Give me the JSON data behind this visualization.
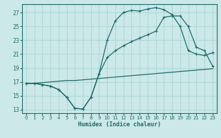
{
  "xlabel": "Humidex (Indice chaleur)",
  "bg_color": "#cce8e8",
  "grid_color": "#b0d8d8",
  "line_color": "#1a6b6b",
  "xlim": [
    -0.5,
    23.5
  ],
  "ylim": [
    12.5,
    28.2
  ],
  "xticks": [
    0,
    1,
    2,
    3,
    4,
    5,
    6,
    7,
    8,
    9,
    10,
    11,
    12,
    13,
    14,
    15,
    16,
    17,
    18,
    19,
    20,
    21,
    22,
    23
  ],
  "yticks": [
    13,
    15,
    17,
    19,
    21,
    23,
    25,
    27
  ],
  "line1_x": [
    0,
    1,
    2,
    3,
    4,
    5,
    6,
    7,
    8,
    9,
    10,
    11,
    12,
    13,
    14,
    15,
    16,
    17,
    18,
    19,
    20,
    21,
    22,
    23
  ],
  "line1_y": [
    16.8,
    16.8,
    16.6,
    16.4,
    15.9,
    14.8,
    13.2,
    13.1,
    14.8,
    18.2,
    23.0,
    25.8,
    27.0,
    27.3,
    27.2,
    27.5,
    27.7,
    27.4,
    26.7,
    25.0,
    21.5,
    21.0,
    20.8,
    21.2
  ],
  "line2_x": [
    0,
    1,
    2,
    3,
    4,
    5,
    6,
    7,
    8,
    9,
    10,
    11,
    12,
    13,
    14,
    15,
    16,
    17,
    18,
    19,
    20,
    21,
    22,
    23
  ],
  "line2_y": [
    16.8,
    16.8,
    16.6,
    16.4,
    15.9,
    14.8,
    13.2,
    13.1,
    14.8,
    18.2,
    20.5,
    21.5,
    22.2,
    22.8,
    23.3,
    23.8,
    24.3,
    26.3,
    26.5,
    26.5,
    25.0,
    22.0,
    21.5,
    19.3
  ],
  "line3_x": [
    0,
    1,
    2,
    3,
    4,
    5,
    6,
    7,
    8,
    9,
    10,
    11,
    12,
    13,
    14,
    15,
    16,
    17,
    18,
    19,
    20,
    21,
    22,
    23
  ],
  "line3_y": [
    16.8,
    16.8,
    16.9,
    17.0,
    17.1,
    17.2,
    17.2,
    17.3,
    17.4,
    17.5,
    17.6,
    17.7,
    17.8,
    17.9,
    18.0,
    18.1,
    18.2,
    18.3,
    18.4,
    18.5,
    18.6,
    18.7,
    18.8,
    18.9
  ]
}
